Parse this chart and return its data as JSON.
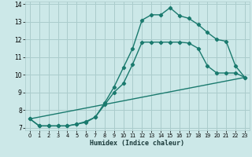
{
  "xlabel": "Humidex (Indice chaleur)",
  "bg_color": "#cce8e8",
  "grid_color": "#aacccc",
  "line_color": "#1a7a6e",
  "xlim": [
    -0.5,
    23.5
  ],
  "ylim": [
    6.85,
    14.15
  ],
  "xticks": [
    0,
    1,
    2,
    3,
    4,
    5,
    6,
    7,
    8,
    9,
    10,
    11,
    12,
    13,
    14,
    15,
    16,
    17,
    18,
    19,
    20,
    21,
    22,
    23
  ],
  "yticks": [
    7,
    8,
    9,
    10,
    11,
    12,
    13,
    14
  ],
  "curve1_x": [
    0,
    1,
    2,
    3,
    4,
    5,
    6,
    7,
    8,
    9,
    10,
    11,
    12,
    13,
    14,
    15,
    16,
    17,
    18,
    19,
    20,
    21,
    22,
    23
  ],
  "curve1_y": [
    7.5,
    7.1,
    7.1,
    7.1,
    7.1,
    7.2,
    7.3,
    7.6,
    8.4,
    9.3,
    10.4,
    11.5,
    13.1,
    13.4,
    13.4,
    13.8,
    13.35,
    13.2,
    12.85,
    12.4,
    12.0,
    11.9,
    10.5,
    9.85
  ],
  "curve2_x": [
    0,
    1,
    2,
    3,
    4,
    5,
    6,
    7,
    8,
    9,
    10,
    11,
    12,
    13,
    14,
    15,
    16,
    17,
    18,
    19,
    20,
    21,
    22,
    23
  ],
  "curve2_y": [
    7.5,
    7.1,
    7.1,
    7.1,
    7.1,
    7.2,
    7.35,
    7.6,
    8.3,
    9.0,
    9.5,
    10.6,
    11.85,
    11.85,
    11.85,
    11.85,
    11.85,
    11.8,
    11.5,
    10.5,
    10.1,
    10.1,
    10.1,
    9.85
  ],
  "curve3_x": [
    0,
    23
  ],
  "curve3_y": [
    7.5,
    9.85
  ]
}
